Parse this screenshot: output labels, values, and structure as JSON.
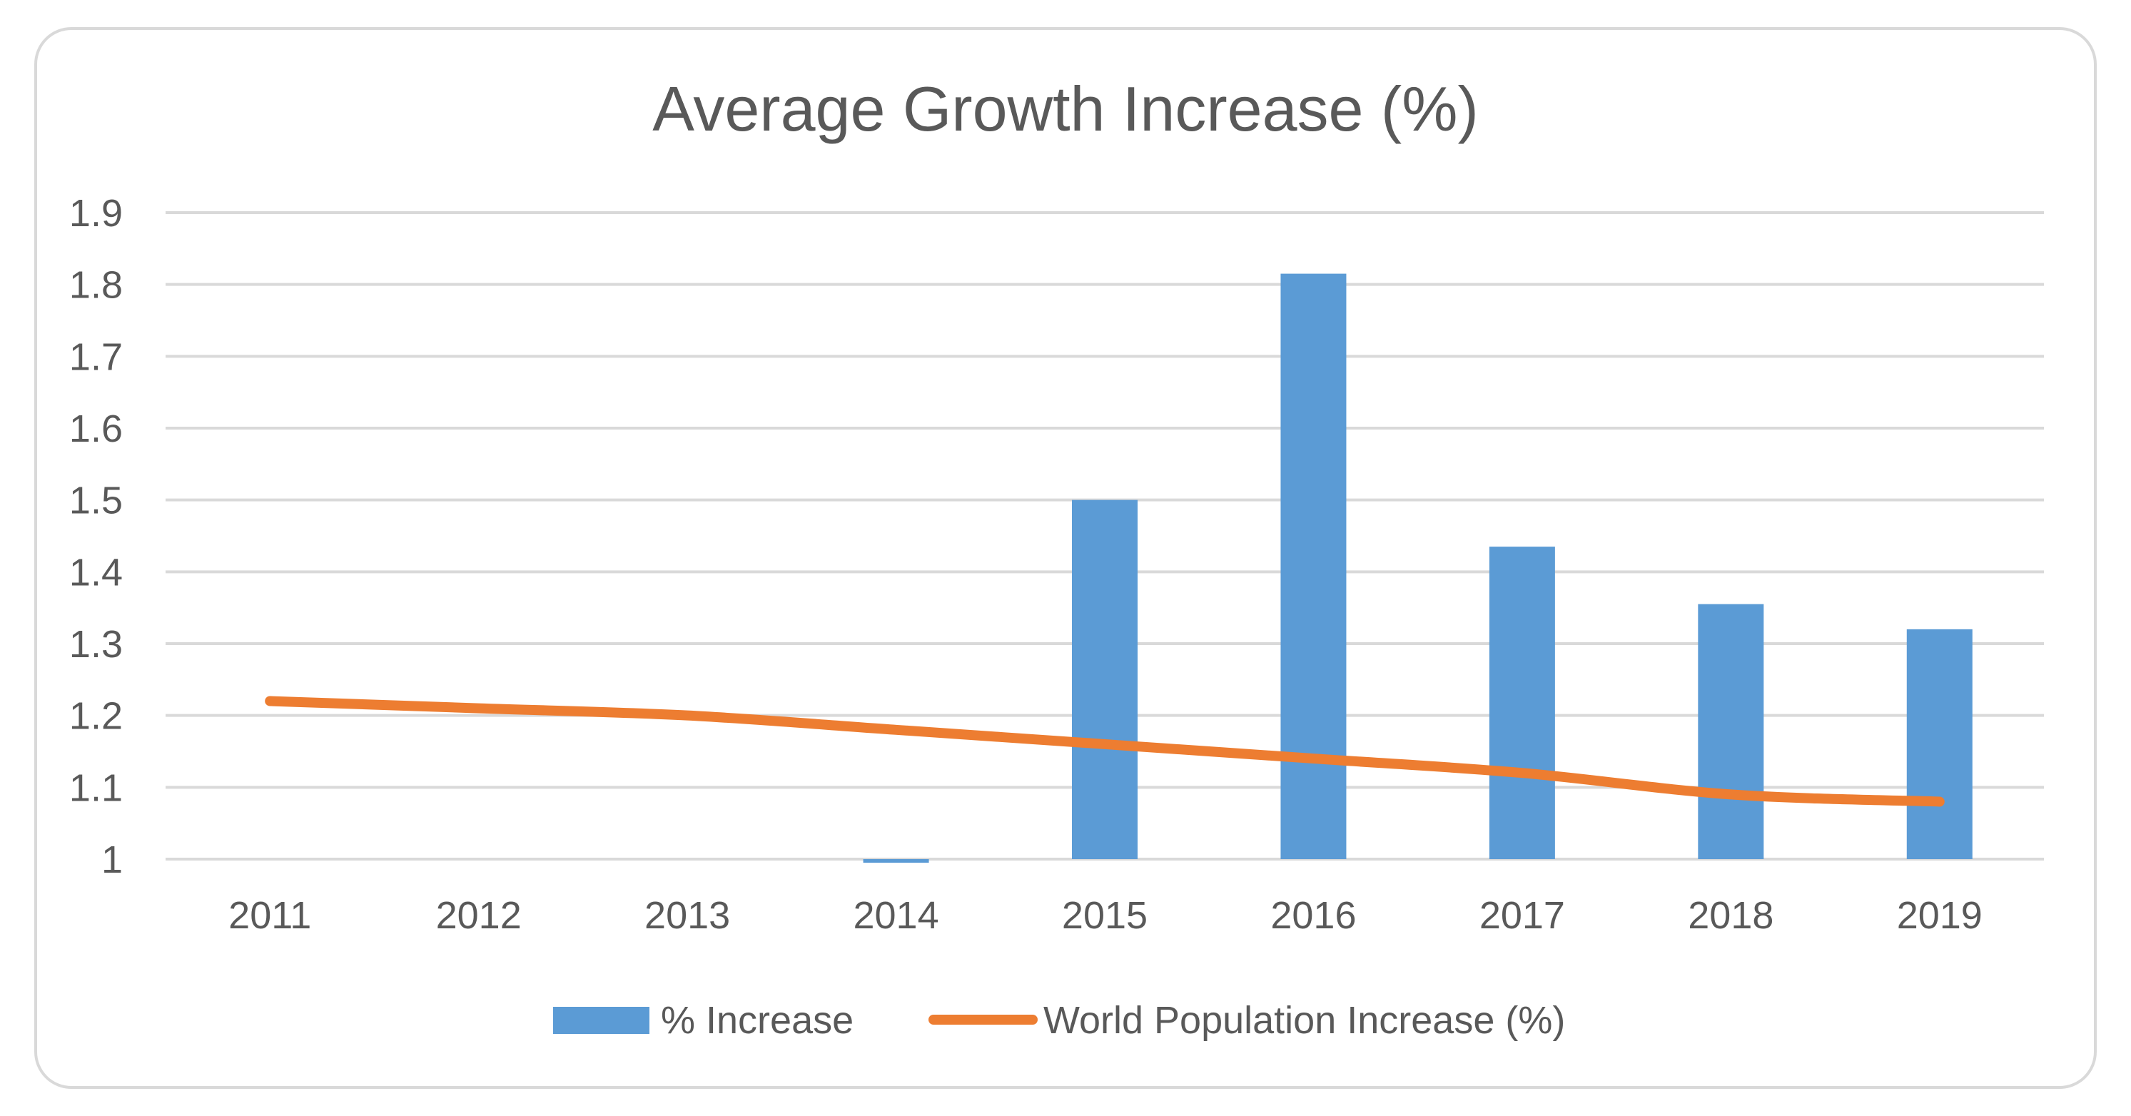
{
  "chart_data": {
    "type": "bar",
    "title": "Average Growth Increase (%)",
    "xlabel": "",
    "ylabel": "",
    "categories": [
      "2011",
      "2012",
      "2013",
      "2014",
      "2015",
      "2016",
      "2017",
      "2018",
      "2019"
    ],
    "ylim": [
      1,
      1.9
    ],
    "yticks": [
      "1",
      "1.1",
      "1.2",
      "1.3",
      "1.4",
      "1.5",
      "1.6",
      "1.7",
      "1.8",
      "1.9"
    ],
    "grid": true,
    "legend_position": "bottom",
    "series": [
      {
        "name": "% Increase",
        "type": "bar",
        "color": "#5b9bd5",
        "values": [
          null,
          null,
          null,
          0.995,
          1.5,
          1.815,
          1.435,
          1.355,
          1.32
        ]
      },
      {
        "name": "World Population Increase (%)",
        "type": "line",
        "color": "#ed7d31",
        "values": [
          1.22,
          1.21,
          1.2,
          1.18,
          1.16,
          1.14,
          1.12,
          1.09,
          1.08
        ]
      }
    ]
  }
}
